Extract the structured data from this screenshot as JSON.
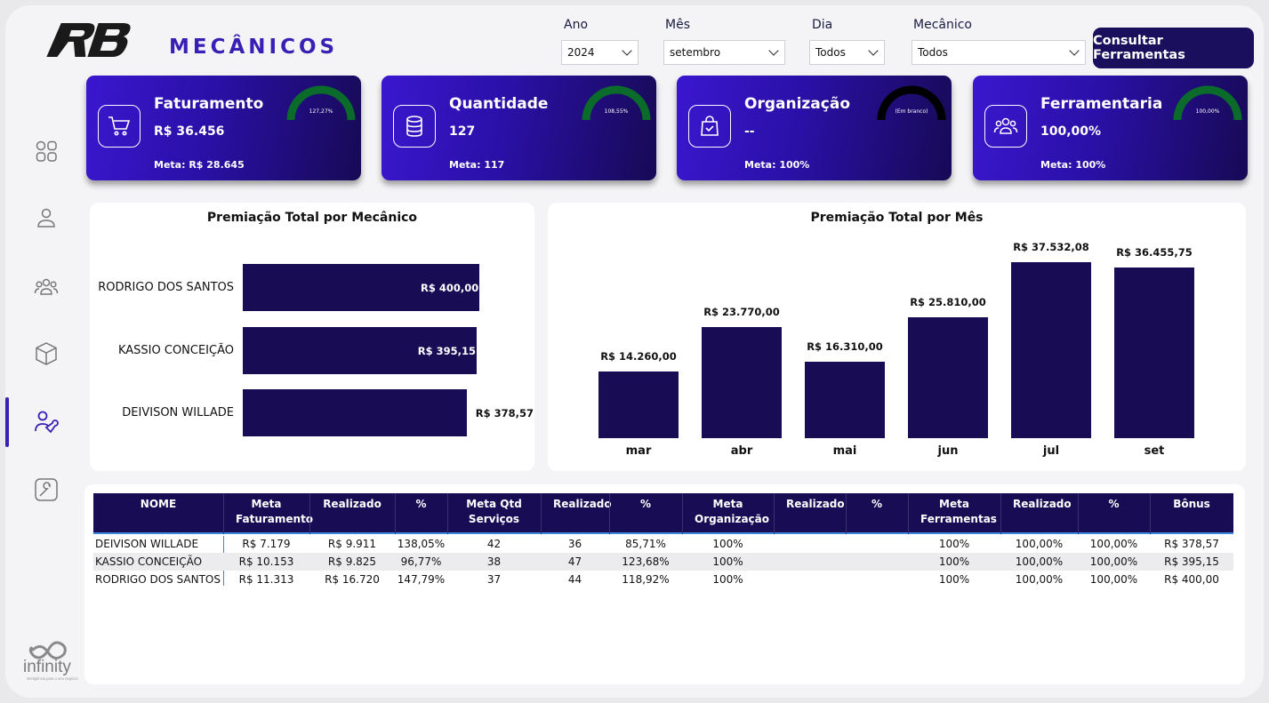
{
  "brand": {
    "logo_text": "RB",
    "footer_logo_text": "infinity",
    "footer_logo_tagline": "inteligência para o seu negócio"
  },
  "header": {
    "title": "MECÂNICOS"
  },
  "filters": {
    "ano": {
      "label": "Ano",
      "value": "2024"
    },
    "mes": {
      "label": "Mês",
      "value": "setembro"
    },
    "dia": {
      "label": "Dia",
      "value": "Todos"
    },
    "mecanico": {
      "label": "Mecânico",
      "value": "Todos"
    }
  },
  "consultar_button": "Consultar Ferramentas",
  "sidebar": {
    "items": [
      "dashboard-icon",
      "user-icon",
      "team-icon",
      "box-icon",
      "mechanic-icon",
      "tool-icon"
    ],
    "active": 4
  },
  "kpis": [
    {
      "title": "Faturamento",
      "value": "R$ 36.456",
      "meta": "Meta: R$ 28.645",
      "gauge_label": "127,27%",
      "gauge_pct": 127.27,
      "gauge_color": "#0a6b2a",
      "icon": "cart-icon"
    },
    {
      "title": "Quantidade",
      "value": "127",
      "meta": "Meta: 117",
      "gauge_label": "108,55%",
      "gauge_pct": 108.55,
      "gauge_color": "#0a6b2a",
      "icon": "database-icon"
    },
    {
      "title": "Organização",
      "value": "--",
      "meta": "Meta: 100%",
      "gauge_label": "(Em branco)",
      "gauge_pct": 0,
      "gauge_color": "#000000",
      "icon": "bag-check-icon"
    },
    {
      "title": "Ferramentaria",
      "value": "100,00%",
      "meta": "Meta: 100%",
      "gauge_label": "100,00%",
      "gauge_pct": 100,
      "gauge_color": "#0a6b2a",
      "icon": "team-icon"
    }
  ],
  "chart_data": [
    {
      "type": "bar",
      "orientation": "horizontal",
      "title": "Premiação Total por Mecânico",
      "categories": [
        "RODRIGO DOS SANTOS",
        "KASSIO CONCEIÇÃO",
        "DEIVISON WILLADE"
      ],
      "values": [
        400.0,
        395.15,
        378.57
      ],
      "labels": [
        "R$ 400,00",
        "R$ 395,15",
        "R$ 378,57"
      ],
      "color": "#180c55"
    },
    {
      "type": "bar",
      "title": "Premiação Total por Mês",
      "categories": [
        "mar",
        "abr",
        "mai",
        "jun",
        "jul",
        "set"
      ],
      "values": [
        14260.0,
        23770.0,
        16310.0,
        25810.0,
        37532.08,
        36455.75
      ],
      "labels": [
        "R$ 14.260,00",
        "R$ 23.770,00",
        "R$ 16.310,00",
        "R$ 25.810,00",
        "R$ 37.532,08",
        "R$ 36.455,75"
      ],
      "color": "#180c55"
    }
  ],
  "table": {
    "headers": [
      "NOME",
      "Meta Faturamento",
      "Realizado",
      "%",
      "Meta Qtd Serviços",
      "Realizado",
      "%",
      "Meta Organização",
      "Realizado",
      "%",
      "Meta Ferramentas",
      "Realizado",
      "%",
      "Bônus"
    ],
    "rows": [
      [
        "DEIVISON WILLADE",
        "R$ 7.179",
        "R$ 9.911",
        "138,05%",
        "42",
        "36",
        "85,71%",
        "100%",
        "",
        "",
        "100%",
        "100,00%",
        "100,00%",
        "R$ 378,57"
      ],
      [
        "KASSIO CONCEIÇÃO",
        "R$ 10.153",
        "R$ 9.825",
        "96,77%",
        "38",
        "47",
        "123,68%",
        "100%",
        "",
        "",
        "100%",
        "100,00%",
        "100,00%",
        "R$ 395,15"
      ],
      [
        "RODRIGO DOS SANTOS",
        "R$ 11.313",
        "R$ 16.720",
        "147,79%",
        "37",
        "44",
        "118,92%",
        "100%",
        "",
        "",
        "100%",
        "100,00%",
        "100,00%",
        "R$ 400,00"
      ]
    ]
  }
}
